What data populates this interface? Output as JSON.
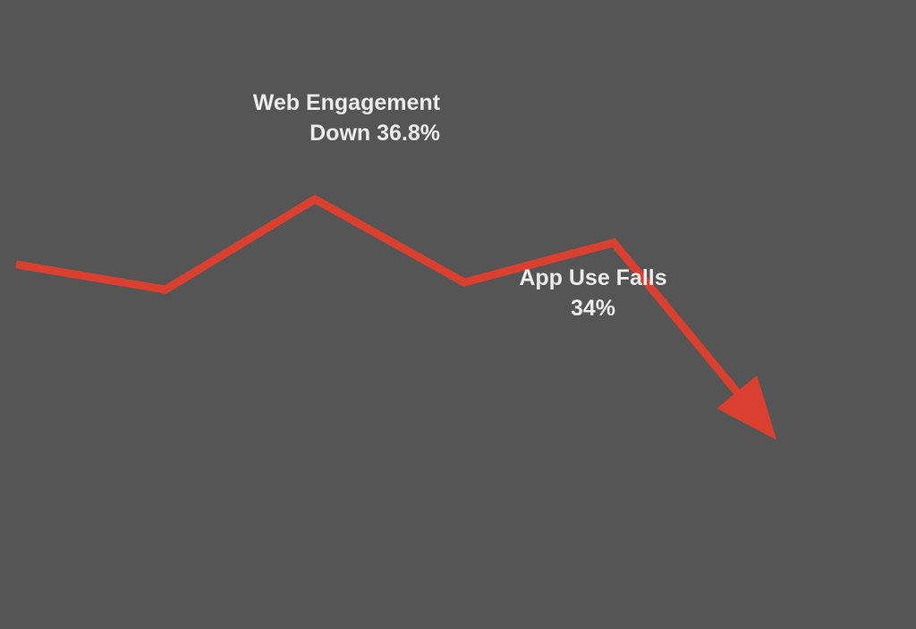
{
  "chart_data": {
    "type": "line",
    "title": "",
    "xlabel": "",
    "ylabel": "",
    "axes_visible": false,
    "grid": false,
    "legend": "none",
    "x": [
      0,
      1,
      2,
      3,
      4,
      5
    ],
    "xlim": [
      0,
      5
    ],
    "ylim": [
      0,
      100
    ],
    "series": [
      {
        "values": [
          63,
          56,
          81,
          58,
          69,
          19
        ]
      }
    ],
    "end_marker": "arrow",
    "annotations": [
      {
        "lines": [
          "Web Engagement",
          "Down 36.8%"
        ]
      },
      {
        "lines": [
          "App Use Falls",
          "34%"
        ]
      }
    ]
  },
  "colors": {
    "background": "#555555",
    "line": "#d9402f",
    "text": "#ececec"
  }
}
